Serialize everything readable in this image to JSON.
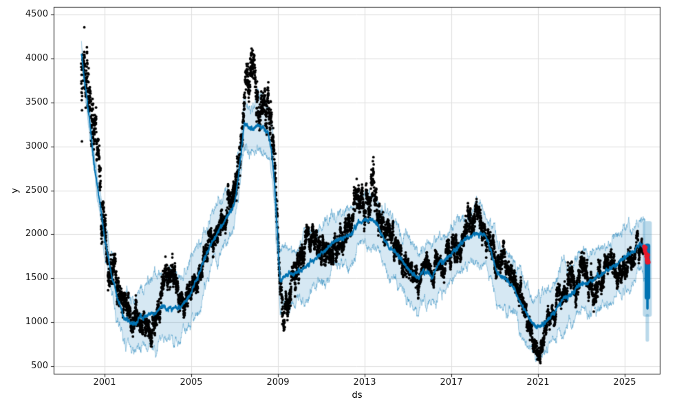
{
  "chart_data": {
    "type": "scatter+line+band",
    "subtype": "prophet-style-forecast",
    "title": "",
    "xlabel": "ds",
    "ylabel": "y",
    "xlim": [
      1998.65,
      2026.62
    ],
    "ylim": [
      410,
      4590
    ],
    "x_ticks": [
      2001,
      2005,
      2009,
      2013,
      2017,
      2021,
      2025
    ],
    "y_ticks": [
      500,
      1000,
      1500,
      2000,
      2500,
      3000,
      3500,
      4000,
      4500
    ],
    "grid": true,
    "legend": "none",
    "colors": {
      "actuals": "#000000",
      "trend": "#0072b2",
      "band": "#0072b2",
      "band_alpha": 0.16,
      "band_edge_alpha": 0.35,
      "anomaly": "#e8192c",
      "grid": "#dedede",
      "spine": "#1a1a1a",
      "background": "#ffffff"
    },
    "trend_line": {
      "x": [
        1999.93,
        2000.15,
        2000.35,
        2000.56,
        2000.8,
        2001.0,
        2001.3,
        2001.6,
        2001.9,
        2002.2,
        2002.45,
        2002.65,
        2002.8,
        2003.0,
        2003.3,
        2003.65,
        2003.9,
        2004.2,
        2004.5,
        2004.75,
        2005.0,
        2005.3,
        2005.6,
        2005.9,
        2006.2,
        2006.6,
        2007.0,
        2007.2,
        2007.45,
        2007.6,
        2007.75,
        2007.9,
        2008.1,
        2008.35,
        2008.55,
        2008.7,
        2008.85,
        2009.0,
        2009.1,
        2009.3,
        2009.6,
        2009.9,
        2010.2,
        2010.55,
        2010.9,
        2011.2,
        2011.5,
        2011.8,
        2012.1,
        2012.4,
        2012.7,
        2013.0,
        2013.35,
        2013.6,
        2013.85,
        2014.1,
        2014.4,
        2014.7,
        2015.0,
        2015.25,
        2015.5,
        2015.7,
        2015.9,
        2016.1,
        2016.4,
        2016.8,
        2017.1,
        2017.45,
        2017.8,
        2018.1,
        2018.5,
        2018.8,
        2019.1,
        2019.45,
        2019.9,
        2020.2,
        2020.5,
        2020.75,
        2020.95,
        2021.2,
        2021.5,
        2021.8,
        2022.2,
        2022.5,
        2022.9,
        2023.5,
        2023.8,
        2024.13,
        2024.4,
        2024.67,
        2025.08,
        2025.4,
        2025.71,
        2025.88
      ],
      "y": [
        4050,
        3600,
        3200,
        2710,
        2330,
        1950,
        1560,
        1260,
        1050,
        990,
        980,
        1070,
        1040,
        1090,
        1085,
        1185,
        1145,
        1160,
        1170,
        1245,
        1330,
        1510,
        1715,
        1880,
        2010,
        2180,
        2340,
        2700,
        3270,
        3230,
        3190,
        3205,
        3235,
        3220,
        3150,
        2950,
        2550,
        1900,
        1460,
        1510,
        1545,
        1570,
        1615,
        1690,
        1760,
        1820,
        1905,
        1945,
        1965,
        2000,
        2135,
        2165,
        2170,
        2105,
        1960,
        1870,
        1800,
        1700,
        1600,
        1545,
        1490,
        1590,
        1560,
        1520,
        1660,
        1725,
        1790,
        1905,
        1960,
        2000,
        2005,
        1845,
        1550,
        1500,
        1395,
        1210,
        1080,
        980,
        935,
        960,
        1040,
        1130,
        1290,
        1300,
        1430,
        1465,
        1520,
        1568,
        1620,
        1663,
        1750,
        1790,
        1900,
        1830
      ]
    },
    "actuals": {
      "t_start": 1999.92,
      "t_end": 2025.85,
      "points_per_year": 261,
      "marker_radius": 1.9,
      "path_x": [
        1999.92,
        2000.05,
        2000.2,
        2000.4,
        2000.6,
        2000.8,
        2001.0,
        2001.2,
        2001.45,
        2001.7,
        2001.95,
        2002.2,
        2002.45,
        2002.7,
        2002.95,
        2003.2,
        2003.45,
        2003.7,
        2003.95,
        2004.1,
        2004.35,
        2004.6,
        2004.85,
        2005.1,
        2005.4,
        2005.7,
        2006.0,
        2006.3,
        2006.6,
        2006.9,
        2007.15,
        2007.4,
        2007.6,
        2007.8,
        2007.95,
        2008.1,
        2008.3,
        2008.5,
        2008.65,
        2008.8,
        2008.95,
        2009.1,
        2009.25,
        2009.45,
        2009.65,
        2009.9,
        2010.15,
        2010.4,
        2010.65,
        2010.9,
        2011.15,
        2011.45,
        2011.75,
        2012.05,
        2012.35,
        2012.65,
        2012.9,
        2013.1,
        2013.4,
        2013.6,
        2013.85,
        2014.1,
        2014.4,
        2014.7,
        2015.0,
        2015.3,
        2015.6,
        2015.9,
        2016.15,
        2016.45,
        2016.75,
        2017.05,
        2017.35,
        2017.65,
        2017.95,
        2018.15,
        2018.4,
        2018.65,
        2018.9,
        2019.15,
        2019.4,
        2019.65,
        2019.9,
        2020.15,
        2020.4,
        2020.65,
        2020.9,
        2021.05,
        2021.25,
        2021.5,
        2021.8,
        2022.1,
        2022.4,
        2022.7,
        2022.95,
        2023.1,
        2023.35,
        2023.6,
        2023.85,
        2024.1,
        2024.35,
        2024.6,
        2024.85,
        2025.05,
        2025.25,
        2025.45,
        2025.6,
        2025.75,
        2025.85
      ],
      "path_y": [
        4050,
        4000,
        3750,
        3300,
        2950,
        2600,
        2100,
        1750,
        1500,
        1300,
        1170,
        1080,
        980,
        880,
        840,
        920,
        1080,
        1380,
        1560,
        1580,
        1420,
        1160,
        1230,
        1400,
        1600,
        1800,
        1950,
        2100,
        2250,
        2400,
        2750,
        3350,
        3800,
        3900,
        3750,
        3450,
        3300,
        3400,
        3250,
        2850,
        2250,
        1450,
        1030,
        1150,
        1450,
        1700,
        1850,
        1980,
        1900,
        1820,
        1880,
        1750,
        1830,
        2000,
        2120,
        2380,
        2480,
        2420,
        2620,
        2280,
        2080,
        1950,
        1880,
        1720,
        1580,
        1500,
        1560,
        1640,
        1500,
        1600,
        1690,
        1760,
        1900,
        2060,
        2220,
        2230,
        2100,
        1980,
        1800,
        1620,
        1700,
        1560,
        1460,
        1320,
        1150,
        950,
        720,
        680,
        850,
        1020,
        1150,
        1260,
        1340,
        1420,
        1600,
        1650,
        1480,
        1400,
        1550,
        1600,
        1680,
        1600,
        1560,
        1580,
        1680,
        1760,
        1840,
        1860,
        1870
      ],
      "noise_sd_x": [
        1999.95,
        2000.5,
        2001.2,
        2002.0,
        2003.0,
        2004.0,
        2005.0,
        2006.0,
        2007.0,
        2007.8,
        2008.5,
        2009.2,
        2010.0,
        2011.0,
        2012.5,
        2013.3,
        2014.5,
        2016.0,
        2017.5,
        2018.2,
        2019.5,
        2020.8,
        2022.0,
        2023.0,
        2024.0,
        2025.0,
        2025.7
      ],
      "noise_sd": [
        290,
        240,
        150,
        110,
        95,
        130,
        95,
        90,
        120,
        180,
        160,
        140,
        110,
        100,
        110,
        140,
        95,
        90,
        100,
        100,
        90,
        90,
        85,
        140,
        110,
        100,
        70
      ]
    },
    "uncertainty_band": {
      "halfwidth_x": [
        1999.95,
        2000.4,
        2001.0,
        2001.8,
        2002.5,
        2003.5,
        2004.5,
        2005.5,
        2006.5,
        2007.3,
        2008.2,
        2009.0,
        2009.6,
        2010.5,
        2012.0,
        2013.5,
        2015.0,
        2016.5,
        2018.0,
        2019.5,
        2021.0,
        2022.5,
        2024.0,
        2025.6
      ],
      "halfwidth": [
        90,
        140,
        200,
        260,
        330,
        385,
        400,
        330,
        285,
        260,
        280,
        300,
        330,
        330,
        310,
        300,
        330,
        330,
        305,
        320,
        330,
        340,
        330,
        330
      ]
    },
    "forecast_window": {
      "t_start": 2025.92,
      "t_end": 2026.18,
      "yhat_max": 1895,
      "yhat_min": 1255,
      "yhat_tail_min": 1140,
      "band_t_start": 2025.84,
      "band_t_end": 2026.25,
      "band_max": 2150,
      "band_min": 1060,
      "band_tail_min": 775
    },
    "anomalies": {
      "points": [
        [
          2025.9,
          1858
        ],
        [
          2025.92,
          1836
        ],
        [
          2025.94,
          1808
        ],
        [
          2025.96,
          1848
        ],
        [
          2025.98,
          1780
        ],
        [
          2026.0,
          1745
        ],
        [
          2026.02,
          1705
        ],
        [
          2026.04,
          1678
        ],
        [
          2026.05,
          1726
        ],
        [
          2026.07,
          1762
        ],
        [
          2026.08,
          1700
        ],
        [
          2026.1,
          1680
        ]
      ],
      "marker_radius": 3.1
    }
  }
}
